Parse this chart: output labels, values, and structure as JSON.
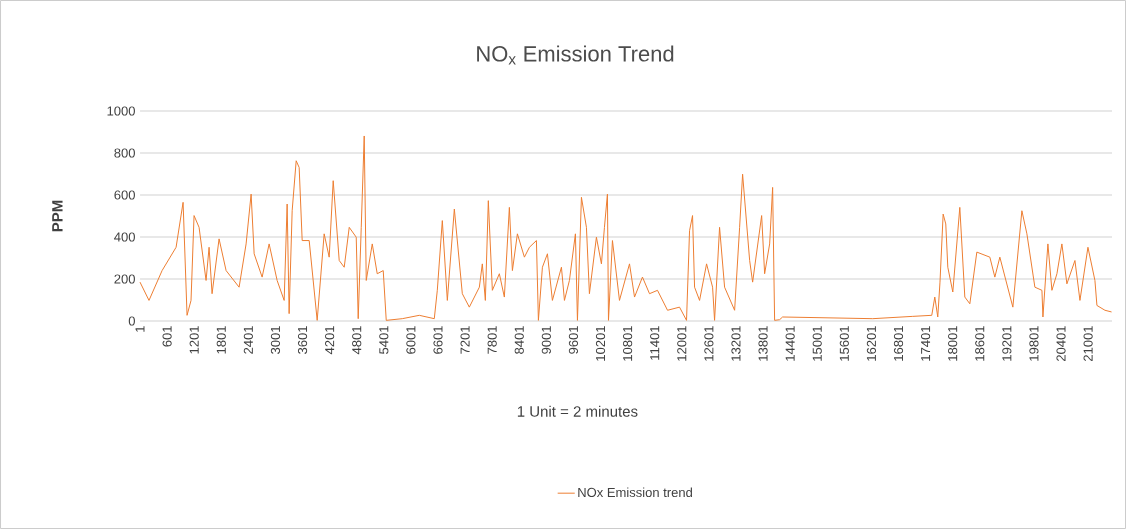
{
  "chart_data": {
    "type": "line",
    "title": "NO$_{x}$ Emission Trend",
    "xlabel": "1 Unit = 2 minutes",
    "ylabel": "PPM",
    "x": [
      1,
      200,
      490,
      800,
      955,
      1043,
      1131,
      1198,
      1309,
      1464,
      1531,
      1597,
      1752,
      1908,
      2196,
      2351,
      2462,
      2529,
      2706,
      2861,
      3038,
      3194,
      3260,
      3304,
      3371,
      3460,
      3526,
      3593,
      3748,
      3925,
      4080,
      4191,
      4280,
      4413,
      4524,
      4635,
      4790,
      4834,
      4901,
      4967,
      5012,
      5145,
      5255,
      5388,
      5455,
      5810,
      6187,
      6519,
      6586,
      6697,
      6808,
      6963,
      7140,
      7295,
      7517,
      7583,
      7650,
      7716,
      7805,
      7960,
      8071,
      8182,
      8249,
      8360,
      8515,
      8626,
      8781,
      8825,
      8914,
      9025,
      9135,
      9335,
      9402,
      9512,
      9645,
      9690,
      9778,
      9889,
      9955,
      10110,
      10221,
      10288,
      10354,
      10377,
      10465,
      10621,
      10843,
      10954,
      11130,
      11286,
      11463,
      11685,
      11951,
      12106,
      12173,
      12239,
      12284,
      12395,
      12550,
      12683,
      12727,
      12838,
      12949,
      13171,
      13282,
      13348,
      13504,
      13570,
      13770,
      13836,
      13947,
      14013,
      14057,
      14167,
      14234,
      16230,
      17117,
      17538,
      17605,
      17671,
      17720,
      17790,
      17848,
      17893,
      18004,
      18159,
      18270,
      18381,
      18536,
      18824,
      18935,
      19046,
      19334,
      19534,
      19645,
      19822,
      19978,
      20000,
      20110,
      20199,
      20310,
      20420,
      20531,
      20709,
      20820,
      20997,
      21152,
      21196,
      21374,
      21520
    ],
    "series": [
      {
        "name": "NOx Emission trend",
        "color": "#ed7d31",
        "values": [
          185,
          98,
          240,
          351,
          565,
          27,
          98,
          502,
          446,
          193,
          351,
          130,
          391,
          240,
          161,
          367,
          604,
          320,
          209,
          367,
          193,
          98,
          557,
          35,
          525,
          763,
          731,
          383,
          383,
          3,
          415,
          304,
          668,
          288,
          256,
          446,
          399,
          11,
          446,
          881,
          193,
          367,
          225,
          240,
          3,
          11,
          27,
          11,
          146,
          478,
          98,
          533,
          130,
          66,
          161,
          272,
          98,
          573,
          146,
          225,
          114,
          541,
          240,
          415,
          304,
          351,
          383,
          3,
          256,
          320,
          98,
          256,
          98,
          193,
          415,
          3,
          589,
          446,
          130,
          399,
          272,
          446,
          604,
          3,
          383,
          98,
          272,
          114,
          209,
          130,
          146,
          51,
          66,
          3,
          430,
          502,
          161,
          98,
          272,
          161,
          3,
          446,
          161,
          51,
          446,
          699,
          288,
          185,
          502,
          225,
          367,
          636,
          3,
          6,
          19,
          11,
          22,
          27,
          114,
          19,
          185,
          509,
          462,
          256,
          138,
          541,
          114,
          82,
          328,
          304,
          209,
          304,
          66,
          525,
          415,
          161,
          146,
          19,
          367,
          146,
          225,
          367,
          177,
          288,
          98,
          351,
          193,
          74,
          51,
          43
        ]
      }
    ],
    "xlim": [
      1,
      21530
    ],
    "ylim": [
      0,
      1000
    ],
    "xticks": [
      1,
      601,
      1201,
      1801,
      2401,
      3001,
      3601,
      4201,
      4801,
      5401,
      6001,
      6601,
      7201,
      7801,
      8401,
      9001,
      9601,
      10201,
      10801,
      11401,
      12001,
      12601,
      13201,
      13801,
      14401,
      15001,
      15601,
      16201,
      16801,
      17401,
      18001,
      18601,
      19201,
      19801,
      20401,
      21001
    ],
    "yticks": [
      0,
      200,
      400,
      600,
      800,
      1000
    ],
    "grid": "y",
    "legend": "bottom",
    "marker": "none",
    "line_style": "solid"
  }
}
